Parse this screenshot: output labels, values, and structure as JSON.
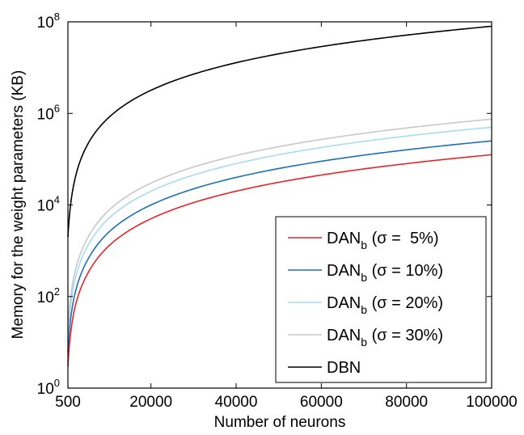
{
  "chart_data": {
    "type": "line",
    "xlabel": "Number of neurons",
    "ylabel": "Memory for the weight parameters (KB)",
    "xlim": [
      500,
      100000
    ],
    "ylim": [
      1,
      100000000
    ],
    "yscale": "log",
    "grid": false,
    "legend_placement": "bottom-right",
    "x_ticks": [
      "500",
      "20000",
      "40000",
      "60000",
      "80000",
      "100000"
    ],
    "y_ticks": [
      {
        "base": "10",
        "exp": "0"
      },
      {
        "base": "10",
        "exp": "2"
      },
      {
        "base": "10",
        "exp": "4"
      },
      {
        "base": "10",
        "exp": "6"
      },
      {
        "base": "10",
        "exp": "8"
      }
    ],
    "x": [
      500,
      1000,
      2000,
      5000,
      10000,
      20000,
      40000,
      60000,
      80000,
      100000
    ],
    "series": [
      {
        "name": "DAN",
        "sub": "b",
        "suffix": " (σ =  5%)",
        "color": "#e8222b",
        "values": [
          3,
          12,
          50,
          300,
          1250,
          5000,
          20000,
          45000,
          80000,
          125000
        ]
      },
      {
        "name": "DAN",
        "sub": "b",
        "suffix": " (σ = 10%)",
        "color": "#1f6fb4",
        "values": [
          6,
          25,
          100,
          600,
          2500,
          10000,
          40000,
          90000,
          160000,
          250000
        ]
      },
      {
        "name": "DAN",
        "sub": "b",
        "suffix": " (σ = 20%)",
        "color": "#a6dcf0",
        "values": [
          12,
          50,
          200,
          1200,
          5000,
          20000,
          80000,
          180000,
          320000,
          500000
        ]
      },
      {
        "name": "DAN",
        "sub": "b",
        "suffix": " (σ = 30%)",
        "color": "#c8c8c8",
        "values": [
          18,
          75,
          300,
          1800,
          7500,
          30000,
          120000,
          270000,
          480000,
          750000
        ]
      },
      {
        "name": "DBN",
        "sub": "",
        "suffix": "",
        "color": "#000000",
        "values": [
          2000,
          8000,
          32000,
          200000,
          800000,
          3200000,
          12800000,
          28800000,
          51200000,
          80000000
        ]
      }
    ]
  }
}
